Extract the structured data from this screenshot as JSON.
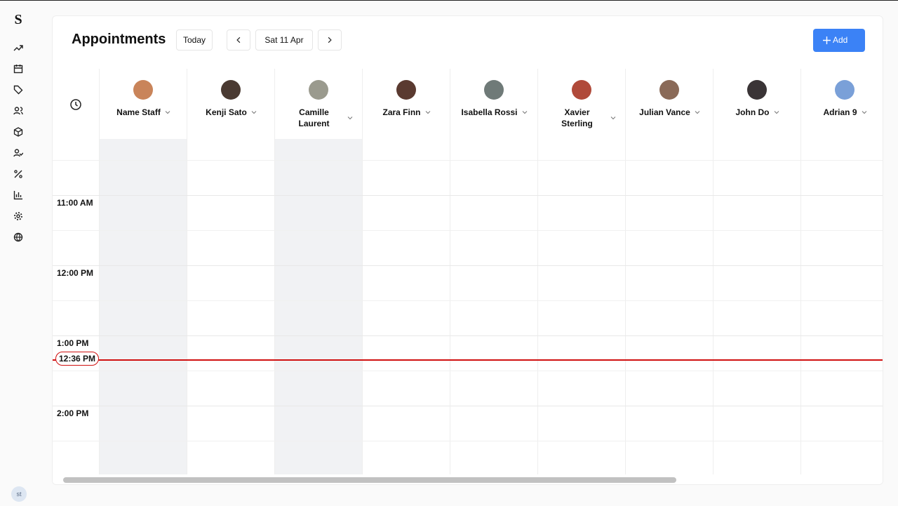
{
  "sidebar": {
    "logo": "S",
    "user_initials": "st"
  },
  "header": {
    "title": "Appointments",
    "today_button": "Today",
    "date": "Sat 11 Apr",
    "add_button": "Add"
  },
  "staff": [
    {
      "name": "Name Staff",
      "off": true,
      "avatar": "#c9845a"
    },
    {
      "name": "Kenji Sato",
      "off": false,
      "avatar": "#4a3a32"
    },
    {
      "name": "Camille Laurent",
      "off": true,
      "avatar": "#9a9a8e"
    },
    {
      "name": "Zara Finn",
      "off": false,
      "avatar": "#5a3a30"
    },
    {
      "name": "Isabella Rossi",
      "off": false,
      "avatar": "#6f7a78"
    },
    {
      "name": "Xavier Sterling",
      "off": false,
      "avatar": "#b04a3a"
    },
    {
      "name": "Julian Vance",
      "off": false,
      "avatar": "#8a6a58"
    },
    {
      "name": "John Do",
      "off": false,
      "avatar": "#3a3436"
    },
    {
      "name": "Adrian 9",
      "off": false,
      "avatar": "#7aa0d8"
    }
  ],
  "time_slots": [
    "11:00 AM",
    "12:00 PM",
    "1:00 PM",
    "2:00 PM"
  ],
  "current_time": "12:36 PM"
}
